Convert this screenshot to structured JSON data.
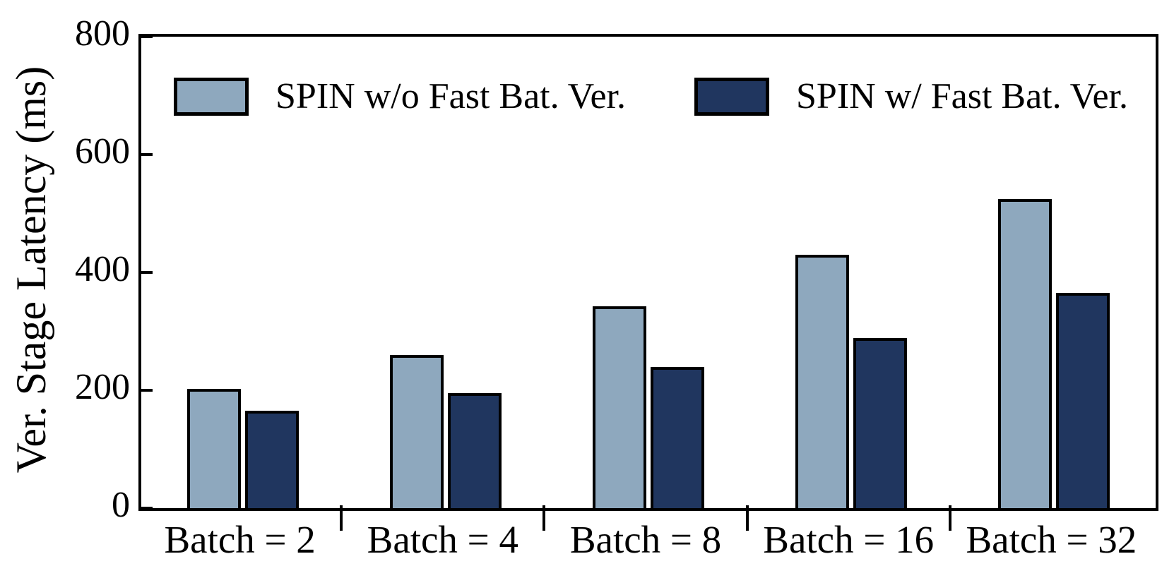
{
  "chart_data": {
    "type": "bar",
    "title": "",
    "xlabel": "",
    "ylabel": "Ver. Stage Latency (ms)",
    "categories": [
      "Batch = 2",
      "Batch = 4",
      "Batch = 8",
      "Batch = 16",
      "Batch = 32"
    ],
    "series": [
      {
        "name": "SPIN w/o Fast Bat. Ver.",
        "color": "#8EA8BE",
        "values": [
          202,
          260,
          342,
          430,
          524
        ]
      },
      {
        "name": "SPIN w/ Fast Bat. Ver.",
        "color": "#20365F",
        "values": [
          165,
          195,
          240,
          289,
          365
        ]
      }
    ],
    "ylim": [
      0,
      800
    ],
    "yticks": [
      "0",
      "200",
      "400",
      "600",
      "800"
    ],
    "grid": false,
    "legend_position": "top-inside",
    "bar_edge_color": "#000000",
    "axis_color": "#000000"
  }
}
